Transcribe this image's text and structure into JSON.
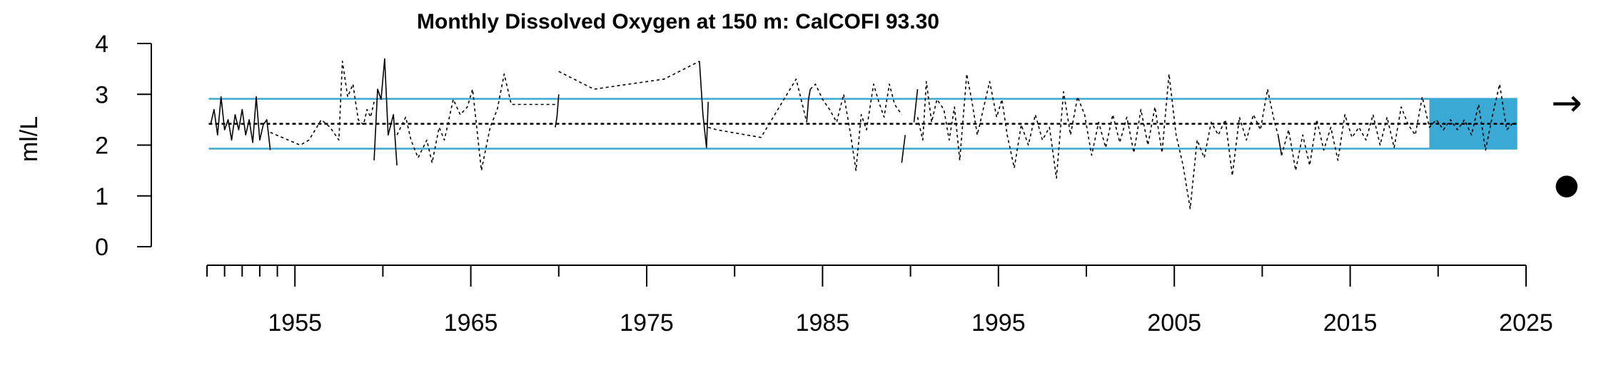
{
  "chart_data": {
    "type": "line",
    "title": "Monthly Dissolved Oxygen at 150 m: CalCOFI 93.30",
    "ylabel": "ml/L",
    "xlabel": "",
    "ylim": [
      0,
      4
    ],
    "xlim": [
      1950,
      2025
    ],
    "y_ticks": [
      "0",
      "1",
      "2",
      "3",
      "4"
    ],
    "x_ticks": [
      "1955",
      "1965",
      "1975",
      "1985",
      "1995",
      "2005",
      "2015",
      "2025"
    ],
    "mean": 2.42,
    "sd_upper": 2.91,
    "sd_lower": 1.93,
    "recent_period": [
      2019.5,
      2024.5
    ],
    "trend_symbol": "→",
    "mean_symbol": "●",
    "colors": {
      "band": "#3aa9d3",
      "recent_fill": "#3aa9d3",
      "series": "#000000",
      "mean_line": "#000000"
    },
    "series": [
      {
        "line_style": "solid",
        "segments": [
          [
            [
              1950.2,
              2.4
            ],
            [
              1950.4,
              2.7
            ],
            [
              1950.6,
              2.2
            ],
            [
              1950.8,
              2.95
            ],
            [
              1951.0,
              2.3
            ],
            [
              1951.2,
              2.5
            ],
            [
              1951.4,
              2.1
            ],
            [
              1951.6,
              2.6
            ],
            [
              1951.8,
              2.3
            ],
            [
              1952.0,
              2.7
            ],
            [
              1952.2,
              2.2
            ],
            [
              1952.4,
              2.5
            ],
            [
              1952.6,
              2.05
            ],
            [
              1952.8,
              2.95
            ],
            [
              1953.0,
              2.1
            ],
            [
              1953.2,
              2.4
            ],
            [
              1953.4,
              2.5
            ],
            [
              1953.6,
              1.9
            ]
          ],
          [
            [
              1959.5,
              1.7
            ],
            [
              1959.7,
              3.1
            ],
            [
              1959.9,
              2.9
            ],
            [
              1960.1,
              3.7
            ],
            [
              1960.3,
              2.2
            ],
            [
              1960.6,
              2.6
            ],
            [
              1960.8,
              1.6
            ]
          ],
          [
            [
              1969.8,
              2.35
            ],
            [
              1969.9,
              2.55
            ],
            [
              1970.0,
              3.0
            ]
          ],
          [
            [
              1978.0,
              3.65
            ],
            [
              1978.2,
              2.6
            ],
            [
              1978.4,
              1.95
            ],
            [
              1978.5,
              2.85
            ]
          ],
          [
            [
              1984.1,
              2.45
            ],
            [
              1984.2,
              2.9
            ],
            [
              1984.3,
              3.1
            ]
          ],
          [
            [
              1989.5,
              1.65
            ],
            [
              1989.7,
              2.2
            ]
          ],
          [
            [
              1990.2,
              2.45
            ],
            [
              1990.4,
              3.1
            ]
          ],
          [
            [
              2010.9,
              2.2
            ],
            [
              2011.1,
              1.8
            ]
          ]
        ]
      },
      {
        "line_style": "dashed",
        "segments": [
          [
            [
              1953.6,
              2.25
            ],
            [
              1955.3,
              2.0
            ],
            [
              1955.8,
              2.1
            ],
            [
              1956.5,
              2.5
            ],
            [
              1957.0,
              2.35
            ],
            [
              1957.5,
              2.1
            ],
            [
              1957.7,
              3.65
            ],
            [
              1958.0,
              2.95
            ],
            [
              1958.3,
              3.2
            ],
            [
              1958.6,
              2.5
            ],
            [
              1958.9,
              2.4
            ],
            [
              1959.1,
              2.7
            ],
            [
              1959.3,
              2.55
            ],
            [
              1959.5,
              2.85
            ]
          ],
          [
            [
              1960.8,
              2.2
            ],
            [
              1961.3,
              2.55
            ],
            [
              1961.6,
              2.1
            ],
            [
              1962.0,
              1.75
            ],
            [
              1962.5,
              2.1
            ],
            [
              1962.8,
              1.65
            ],
            [
              1963.2,
              2.35
            ],
            [
              1963.5,
              2.1
            ],
            [
              1964.0,
              2.9
            ],
            [
              1964.4,
              2.6
            ],
            [
              1964.8,
              2.75
            ],
            [
              1965.1,
              3.1
            ],
            [
              1965.6,
              1.5
            ],
            [
              1966.1,
              2.35
            ],
            [
              1966.5,
              2.7
            ],
            [
              1966.9,
              3.4
            ],
            [
              1967.3,
              2.8
            ],
            [
              1969.8,
              2.8
            ]
          ],
          [
            [
              1970.0,
              3.45
            ],
            [
              1972.0,
              3.1
            ],
            [
              1976.0,
              3.3
            ],
            [
              1978.0,
              3.65
            ]
          ],
          [
            [
              1978.5,
              2.35
            ],
            [
              1979.0,
              2.3
            ],
            [
              1981.5,
              2.15
            ],
            [
              1983.5,
              3.3
            ],
            [
              1984.1,
              2.45
            ]
          ],
          [
            [
              1984.3,
              3.1
            ],
            [
              1984.6,
              3.2
            ],
            [
              1985.0,
              2.9
            ],
            [
              1985.4,
              2.7
            ],
            [
              1985.8,
              2.45
            ],
            [
              1986.2,
              3.0
            ],
            [
              1986.6,
              2.2
            ],
            [
              1986.9,
              1.5
            ],
            [
              1987.2,
              2.6
            ],
            [
              1987.5,
              2.3
            ],
            [
              1987.9,
              3.2
            ],
            [
              1988.2,
              2.85
            ],
            [
              1988.5,
              2.55
            ],
            [
              1988.8,
              3.2
            ],
            [
              1989.1,
              2.8
            ],
            [
              1989.5,
              2.6
            ]
          ],
          [
            [
              1990.4,
              2.55
            ],
            [
              1990.7,
              2.1
            ],
            [
              1990.9,
              3.25
            ],
            [
              1991.2,
              2.45
            ],
            [
              1991.5,
              2.9
            ],
            [
              1991.9,
              2.7
            ],
            [
              1992.2,
              2.1
            ],
            [
              1992.5,
              2.75
            ],
            [
              1992.8,
              1.7
            ],
            [
              1993.2,
              3.4
            ],
            [
              1993.5,
              2.85
            ],
            [
              1993.8,
              2.2
            ],
            [
              1994.1,
              2.65
            ],
            [
              1994.5,
              3.25
            ],
            [
              1994.9,
              2.55
            ],
            [
              1995.2,
              2.9
            ],
            [
              1995.5,
              2.2
            ],
            [
              1995.9,
              1.55
            ],
            [
              1996.3,
              2.4
            ],
            [
              1996.7,
              2.0
            ],
            [
              1997.1,
              2.6
            ],
            [
              1997.5,
              2.1
            ],
            [
              1997.9,
              2.35
            ],
            [
              1998.3,
              1.35
            ],
            [
              1998.7,
              3.05
            ],
            [
              1999.1,
              2.2
            ],
            [
              1999.5,
              2.95
            ],
            [
              1999.9,
              2.6
            ],
            [
              2000.3,
              1.8
            ],
            [
              2000.7,
              2.45
            ],
            [
              2001.1,
              1.95
            ],
            [
              2001.5,
              2.6
            ],
            [
              2001.9,
              2.05
            ],
            [
              2002.3,
              2.55
            ],
            [
              2002.7,
              1.85
            ],
            [
              2003.1,
              2.7
            ],
            [
              2003.5,
              2.0
            ],
            [
              2003.9,
              2.75
            ],
            [
              2004.3,
              1.85
            ],
            [
              2004.7,
              3.4
            ],
            [
              2005.1,
              2.2
            ],
            [
              2005.5,
              1.6
            ],
            [
              2005.9,
              0.75
            ],
            [
              2006.3,
              2.1
            ],
            [
              2006.7,
              1.75
            ],
            [
              2007.1,
              2.45
            ],
            [
              2007.5,
              2.2
            ],
            [
              2007.9,
              2.5
            ],
            [
              2008.3,
              1.4
            ],
            [
              2008.7,
              2.55
            ],
            [
              2009.1,
              2.1
            ],
            [
              2009.5,
              2.6
            ],
            [
              2009.9,
              2.3
            ],
            [
              2010.3,
              3.1
            ],
            [
              2010.7,
              2.45
            ],
            [
              2010.9,
              2.2
            ]
          ],
          [
            [
              2011.1,
              1.8
            ],
            [
              2011.5,
              2.3
            ],
            [
              2011.9,
              1.5
            ],
            [
              2012.3,
              2.2
            ],
            [
              2012.7,
              1.6
            ],
            [
              2013.1,
              2.5
            ],
            [
              2013.5,
              1.9
            ],
            [
              2013.9,
              2.35
            ],
            [
              2014.3,
              1.7
            ],
            [
              2014.7,
              2.6
            ],
            [
              2015.1,
              2.15
            ],
            [
              2015.5,
              2.35
            ],
            [
              2015.9,
              2.1
            ],
            [
              2016.3,
              2.6
            ],
            [
              2016.7,
              2.0
            ],
            [
              2017.1,
              2.55
            ],
            [
              2017.5,
              1.95
            ],
            [
              2017.9,
              2.75
            ],
            [
              2018.3,
              2.4
            ],
            [
              2018.7,
              2.2
            ],
            [
              2019.1,
              2.95
            ],
            [
              2019.5,
              2.35
            ],
            [
              2019.9,
              2.5
            ],
            [
              2020.3,
              2.3
            ],
            [
              2020.7,
              2.5
            ],
            [
              2021.1,
              2.3
            ],
            [
              2021.5,
              2.5
            ],
            [
              2021.9,
              2.2
            ],
            [
              2022.3,
              2.8
            ],
            [
              2022.7,
              1.9
            ],
            [
              2023.1,
              2.6
            ],
            [
              2023.5,
              3.2
            ],
            [
              2023.9,
              2.3
            ],
            [
              2024.3,
              2.45
            ]
          ]
        ]
      }
    ]
  }
}
